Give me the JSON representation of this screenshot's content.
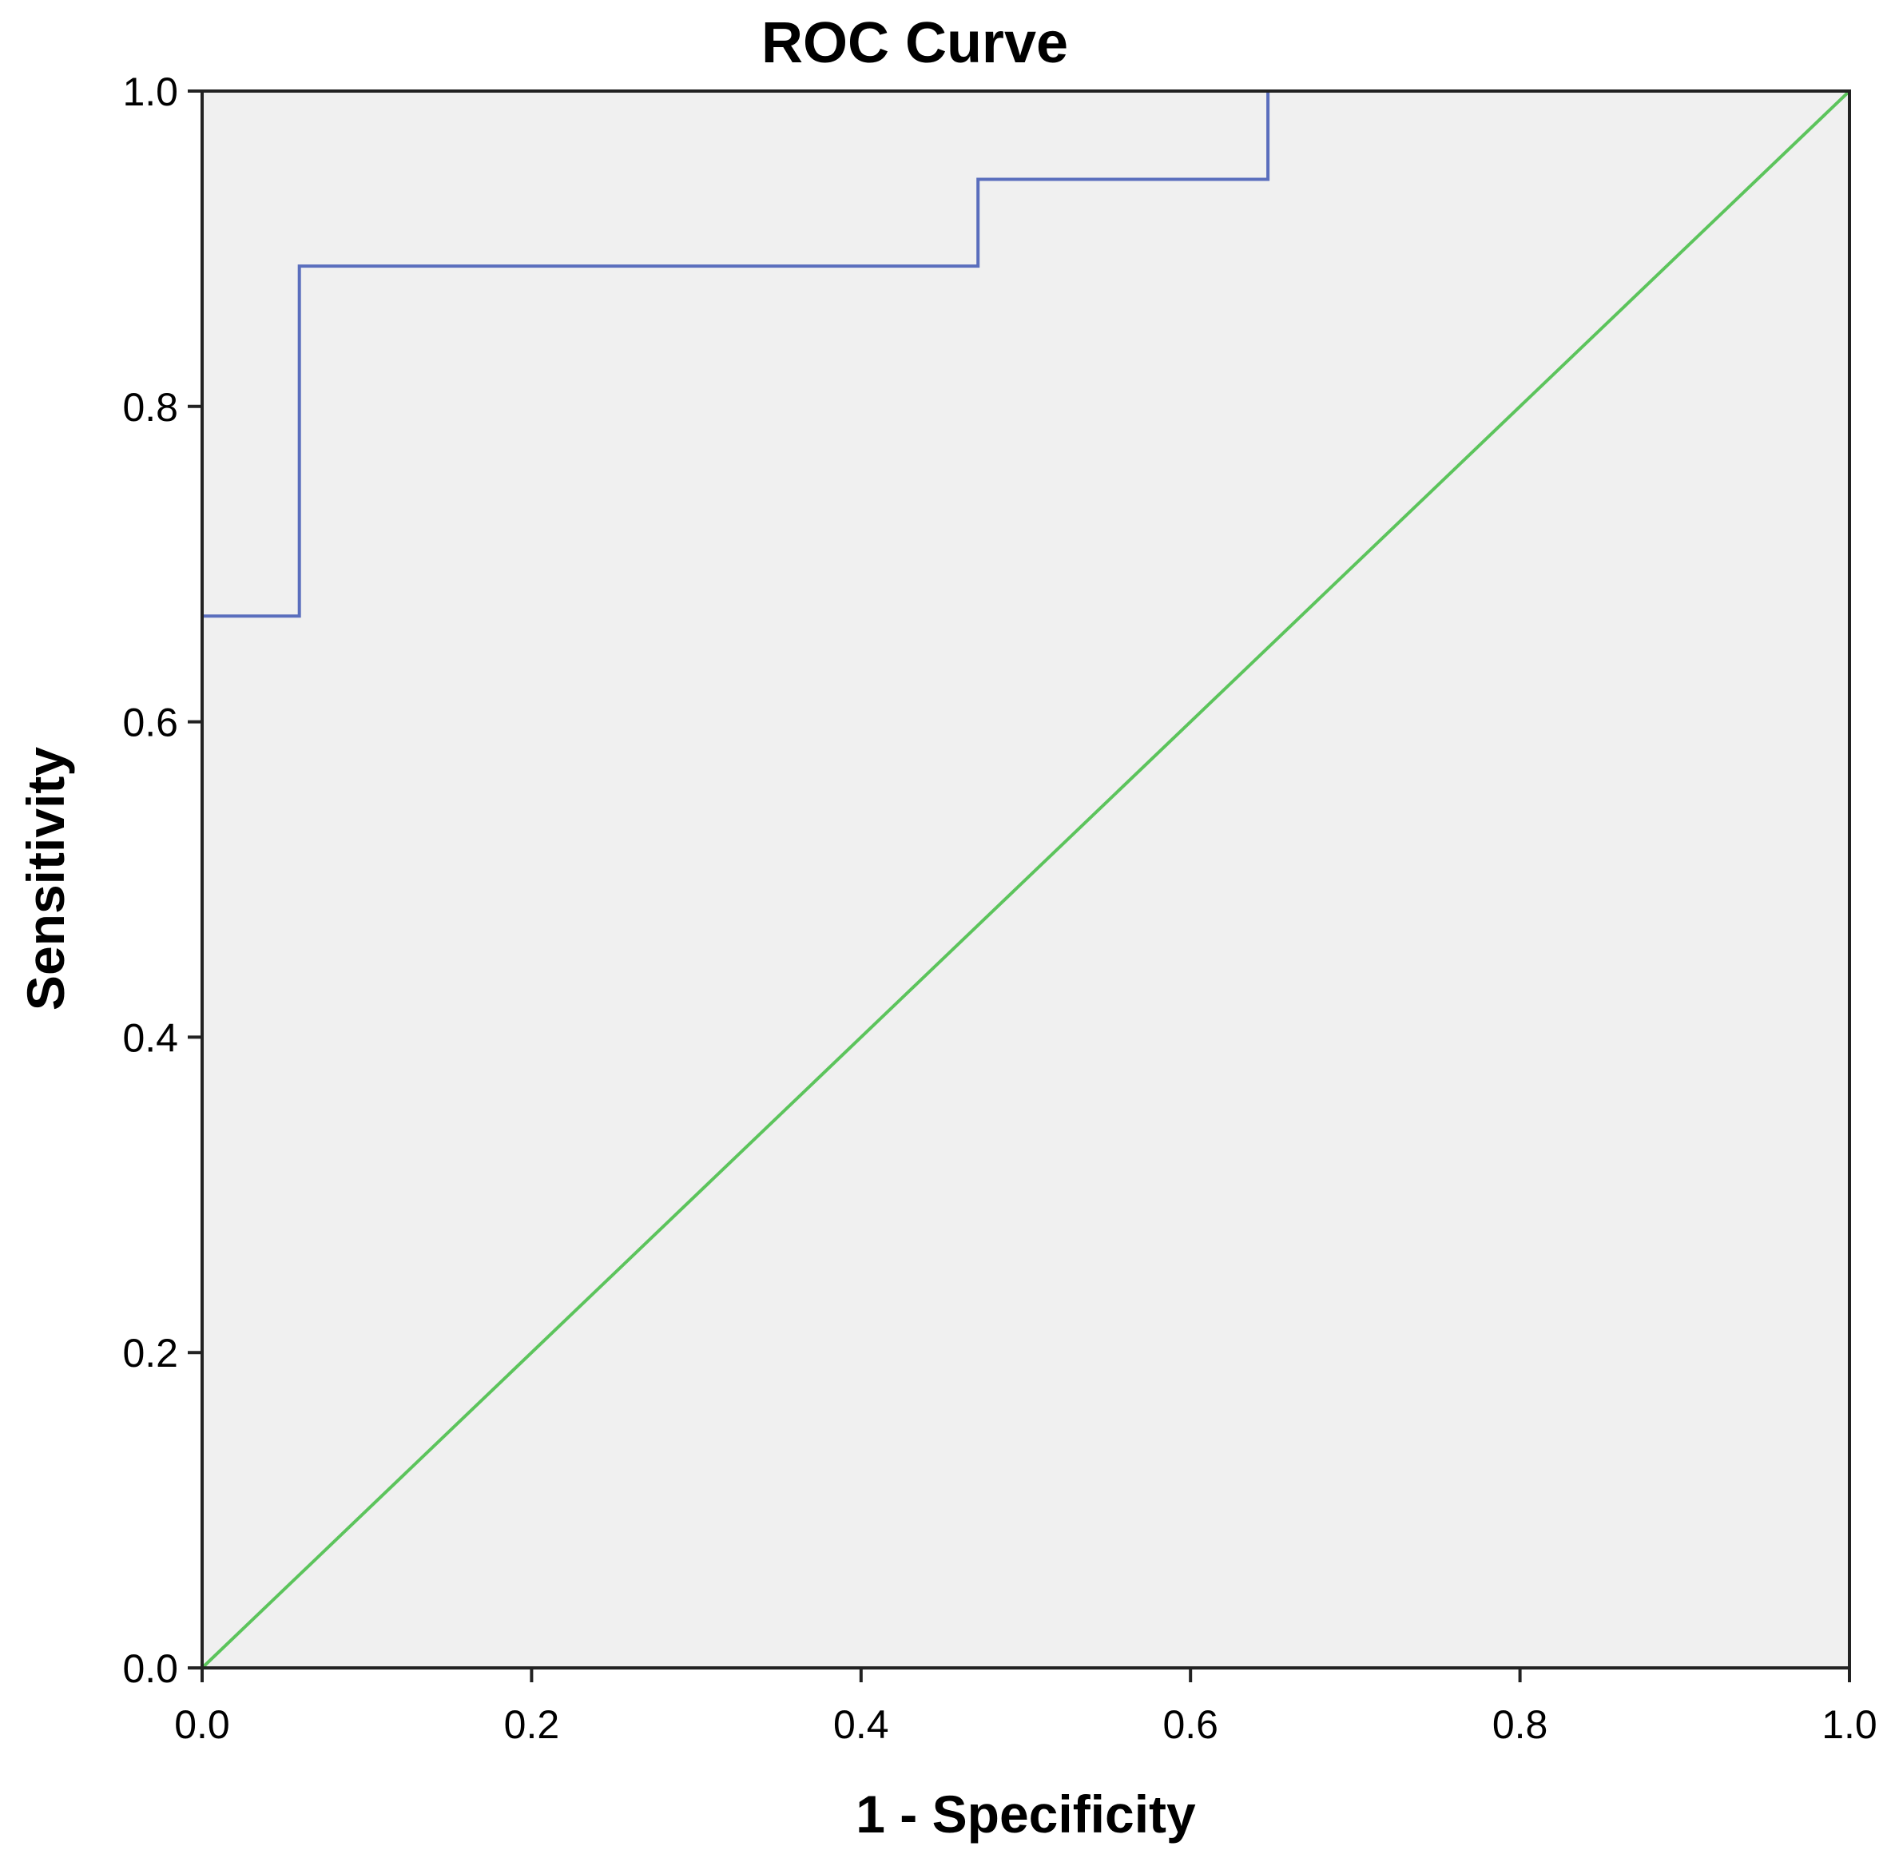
{
  "chart_data": {
    "type": "line",
    "title": "ROC Curve",
    "xlabel": "1 - Specificity",
    "ylabel": "Sensitivity",
    "xlim": [
      0,
      1
    ],
    "ylim": [
      0,
      1
    ],
    "x_ticks": [
      "0.0",
      "0.2",
      "0.4",
      "0.6",
      "0.8",
      "1.0"
    ],
    "y_ticks": [
      "0.0",
      "0.2",
      "0.4",
      "0.6",
      "0.8",
      "1.0"
    ],
    "grid": false,
    "legend": "none",
    "colors": {
      "roc": "#5a6ebd",
      "reference": "#5cc45c",
      "plot_background": "#f0f0f0",
      "axes": "#222222"
    },
    "series": [
      {
        "style": "step",
        "x": [
          0.0,
          0.0,
          0.059,
          0.059,
          0.471,
          0.471,
          0.647,
          0.647,
          1.0
        ],
        "y": [
          0.0,
          0.667,
          0.667,
          0.889,
          0.889,
          0.944,
          0.944,
          1.0,
          1.0
        ]
      },
      {
        "style": "diagonal",
        "x": [
          0.0,
          1.0
        ],
        "y": [
          0.0,
          1.0
        ]
      }
    ]
  }
}
